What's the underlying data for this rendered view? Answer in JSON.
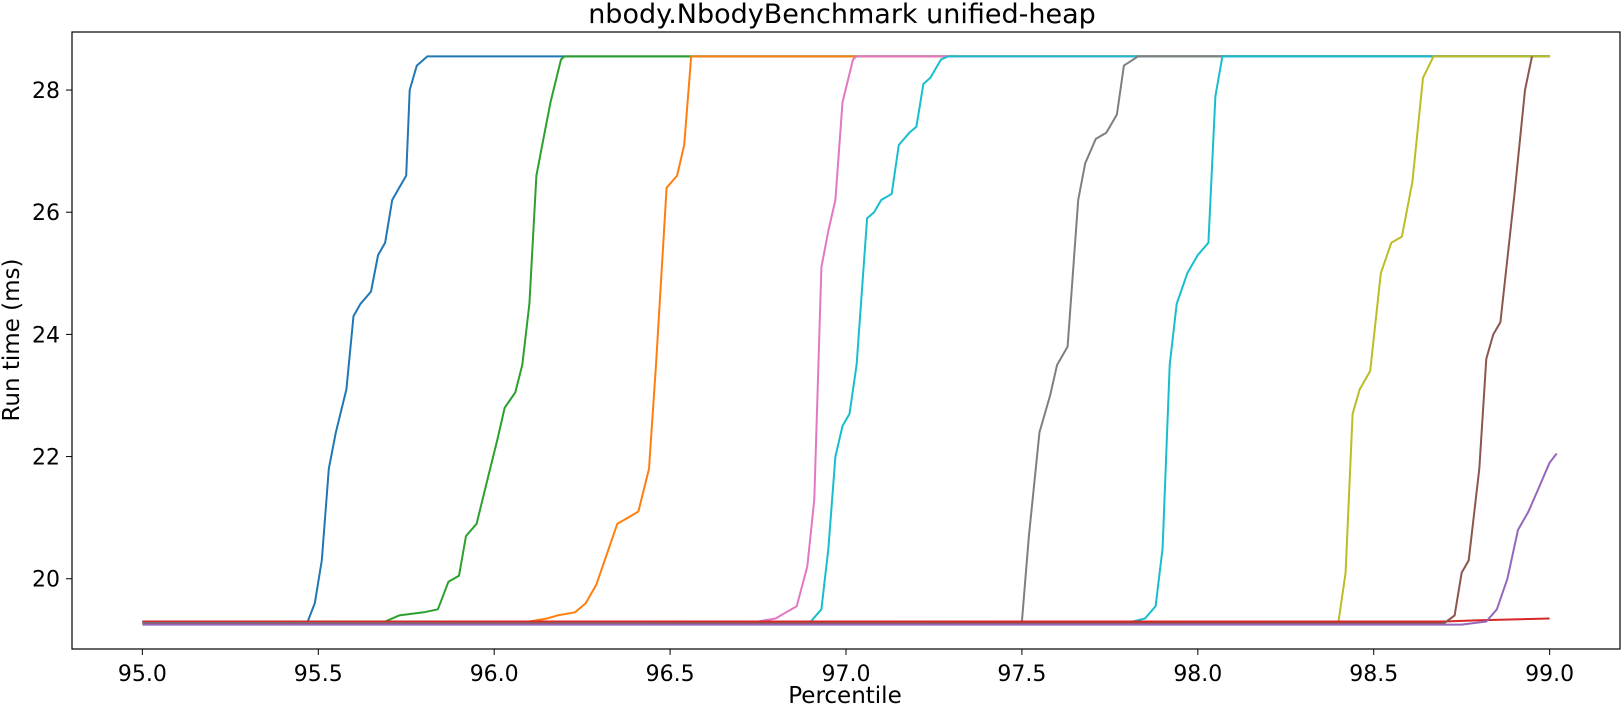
{
  "chart_data": {
    "type": "line",
    "title": "nbody.NbodyBenchmark unified-heap",
    "xlabel": "Percentile",
    "ylabel": "Run time (ms)",
    "xlim": [
      94.8,
      99.2
    ],
    "ylim": [
      18.85,
      28.95
    ],
    "xticks": [
      95.0,
      95.5,
      96.0,
      96.5,
      97.0,
      97.5,
      98.0,
      98.5,
      99.0
    ],
    "xtick_labels": [
      "95.0",
      "95.5",
      "96.0",
      "96.5",
      "97.0",
      "97.5",
      "98.0",
      "98.5",
      "99.0"
    ],
    "yticks": [
      20,
      22,
      24,
      26,
      28
    ],
    "ytick_labels": [
      "20",
      "22",
      "24",
      "26",
      "28"
    ],
    "grid": false,
    "legend": "none",
    "series": [
      {
        "color": "#1f77b4",
        "points": [
          [
            95.0,
            19.3
          ],
          [
            95.47,
            19.3
          ],
          [
            95.49,
            19.6
          ],
          [
            95.51,
            20.3
          ],
          [
            95.53,
            21.8
          ],
          [
            95.55,
            22.4
          ],
          [
            95.58,
            23.1
          ],
          [
            95.6,
            24.3
          ],
          [
            95.62,
            24.5
          ],
          [
            95.65,
            24.7
          ],
          [
            95.67,
            25.3
          ],
          [
            95.69,
            25.5
          ],
          [
            95.71,
            26.2
          ],
          [
            95.73,
            26.4
          ],
          [
            95.75,
            26.6
          ],
          [
            95.76,
            28.0
          ],
          [
            95.78,
            28.4
          ],
          [
            95.81,
            28.55
          ],
          [
            99.0,
            28.55
          ]
        ]
      },
      {
        "color": "#2ca02c",
        "points": [
          [
            95.0,
            19.3
          ],
          [
            95.69,
            19.3
          ],
          [
            95.73,
            19.4
          ],
          [
            95.8,
            19.45
          ],
          [
            95.84,
            19.5
          ],
          [
            95.87,
            19.95
          ],
          [
            95.9,
            20.05
          ],
          [
            95.92,
            20.7
          ],
          [
            95.95,
            20.9
          ],
          [
            95.98,
            21.6
          ],
          [
            96.01,
            22.3
          ],
          [
            96.03,
            22.8
          ],
          [
            96.06,
            23.05
          ],
          [
            96.08,
            23.5
          ],
          [
            96.1,
            24.5
          ],
          [
            96.12,
            26.6
          ],
          [
            96.14,
            27.2
          ],
          [
            96.16,
            27.8
          ],
          [
            96.19,
            28.5
          ],
          [
            96.2,
            28.55
          ],
          [
            99.0,
            28.55
          ]
        ]
      },
      {
        "color": "#ff7f0e",
        "points": [
          [
            95.0,
            19.3
          ],
          [
            96.1,
            19.3
          ],
          [
            96.15,
            19.35
          ],
          [
            96.18,
            19.4
          ],
          [
            96.23,
            19.45
          ],
          [
            96.26,
            19.6
          ],
          [
            96.29,
            19.9
          ],
          [
            96.32,
            20.4
          ],
          [
            96.35,
            20.9
          ],
          [
            96.38,
            21.0
          ],
          [
            96.41,
            21.1
          ],
          [
            96.44,
            21.8
          ],
          [
            96.46,
            23.5
          ],
          [
            96.49,
            26.4
          ],
          [
            96.52,
            26.6
          ],
          [
            96.54,
            27.1
          ],
          [
            96.56,
            28.55
          ],
          [
            99.0,
            28.55
          ]
        ]
      },
      {
        "color": "#e377c2",
        "points": [
          [
            95.0,
            19.3
          ],
          [
            96.75,
            19.3
          ],
          [
            96.8,
            19.35
          ],
          [
            96.83,
            19.45
          ],
          [
            96.86,
            19.55
          ],
          [
            96.89,
            20.2
          ],
          [
            96.91,
            21.3
          ],
          [
            96.93,
            25.1
          ],
          [
            96.95,
            25.7
          ],
          [
            96.97,
            26.2
          ],
          [
            96.99,
            27.8
          ],
          [
            97.02,
            28.5
          ],
          [
            97.03,
            28.55
          ],
          [
            99.0,
            28.55
          ]
        ]
      },
      {
        "color": "#17becf",
        "points": [
          [
            95.0,
            19.3
          ],
          [
            96.9,
            19.3
          ],
          [
            96.93,
            19.5
          ],
          [
            96.95,
            20.5
          ],
          [
            96.97,
            22.0
          ],
          [
            96.99,
            22.5
          ],
          [
            97.01,
            22.7
          ],
          [
            97.03,
            23.5
          ],
          [
            97.06,
            25.9
          ],
          [
            97.08,
            26.0
          ],
          [
            97.1,
            26.2
          ],
          [
            97.13,
            26.3
          ],
          [
            97.15,
            27.1
          ],
          [
            97.18,
            27.3
          ],
          [
            97.2,
            27.4
          ],
          [
            97.22,
            28.1
          ],
          [
            97.24,
            28.2
          ],
          [
            97.27,
            28.5
          ],
          [
            97.29,
            28.55
          ],
          [
            99.0,
            28.55
          ]
        ]
      },
      {
        "color": "#7f7f7f",
        "points": [
          [
            95.0,
            19.27
          ],
          [
            97.28,
            19.27
          ],
          [
            97.5,
            19.3
          ],
          [
            97.52,
            20.7
          ],
          [
            97.55,
            22.4
          ],
          [
            97.58,
            23.0
          ],
          [
            97.6,
            23.5
          ],
          [
            97.63,
            23.8
          ],
          [
            97.66,
            26.2
          ],
          [
            97.68,
            26.8
          ],
          [
            97.71,
            27.2
          ],
          [
            97.74,
            27.3
          ],
          [
            97.77,
            27.6
          ],
          [
            97.79,
            28.4
          ],
          [
            97.83,
            28.55
          ],
          [
            99.0,
            28.55
          ]
        ]
      },
      {
        "color": "#17becf",
        "points": [
          [
            95.0,
            19.28
          ],
          [
            97.8,
            19.28
          ],
          [
            97.85,
            19.35
          ],
          [
            97.88,
            19.55
          ],
          [
            97.9,
            20.5
          ],
          [
            97.92,
            23.5
          ],
          [
            97.94,
            24.5
          ],
          [
            97.97,
            25.0
          ],
          [
            98.0,
            25.3
          ],
          [
            98.03,
            25.5
          ],
          [
            98.05,
            27.9
          ],
          [
            98.07,
            28.55
          ],
          [
            99.0,
            28.55
          ]
        ]
      },
      {
        "color": "#bcbd22",
        "points": [
          [
            95.0,
            19.26
          ],
          [
            97.9,
            19.26
          ],
          [
            98.4,
            19.3
          ],
          [
            98.42,
            20.1
          ],
          [
            98.44,
            22.7
          ],
          [
            98.46,
            23.1
          ],
          [
            98.49,
            23.4
          ],
          [
            98.52,
            25.0
          ],
          [
            98.55,
            25.5
          ],
          [
            98.58,
            25.6
          ],
          [
            98.61,
            26.5
          ],
          [
            98.64,
            28.2
          ],
          [
            98.67,
            28.55
          ],
          [
            99.0,
            28.55
          ]
        ]
      },
      {
        "color": "#d62728",
        "points": [
          [
            95.0,
            19.3
          ],
          [
            98.7,
            19.3
          ],
          [
            98.8,
            19.32
          ],
          [
            99.0,
            19.35
          ]
        ]
      },
      {
        "color": "#8c564b",
        "points": [
          [
            95.0,
            19.26
          ],
          [
            98.7,
            19.27
          ],
          [
            98.73,
            19.4
          ],
          [
            98.75,
            20.1
          ],
          [
            98.77,
            20.3
          ],
          [
            98.8,
            21.8
          ],
          [
            98.82,
            23.6
          ],
          [
            98.84,
            24.0
          ],
          [
            98.86,
            24.2
          ],
          [
            98.9,
            26.3
          ],
          [
            98.93,
            28.0
          ],
          [
            98.95,
            28.55
          ]
        ]
      },
      {
        "color": "#9467bd",
        "points": [
          [
            95.0,
            19.25
          ],
          [
            98.75,
            19.25
          ],
          [
            98.82,
            19.3
          ],
          [
            98.85,
            19.5
          ],
          [
            98.88,
            20.0
          ],
          [
            98.91,
            20.8
          ],
          [
            98.94,
            21.1
          ],
          [
            98.97,
            21.5
          ],
          [
            99.0,
            21.9
          ],
          [
            99.02,
            22.05
          ]
        ]
      }
    ]
  }
}
